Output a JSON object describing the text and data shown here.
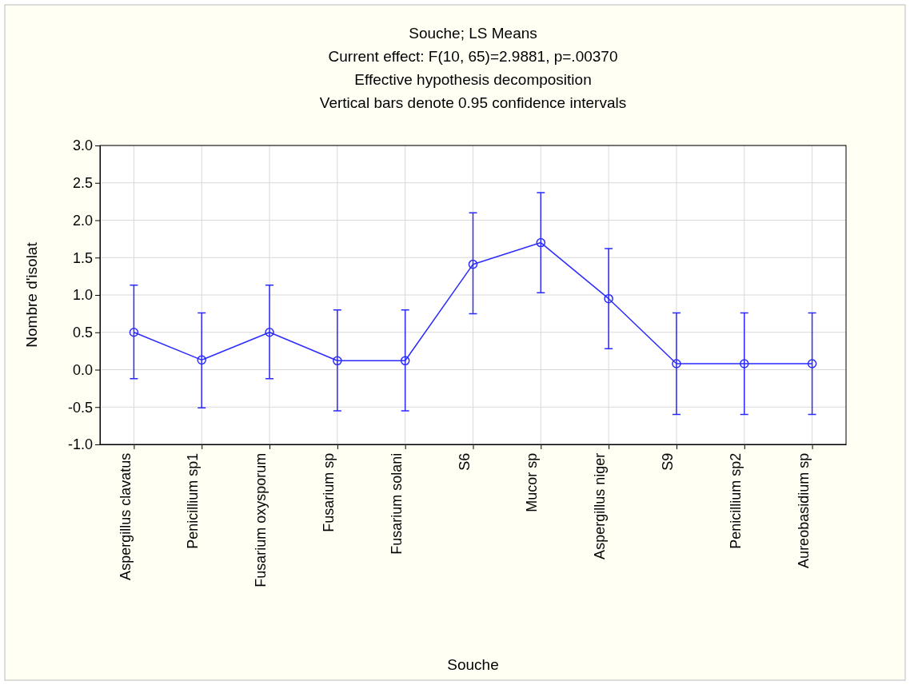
{
  "chart_data": {
    "type": "line",
    "title": "Souche; LS Means",
    "subtitle": "Current effect: F(10, 65)=2.9881, p=.00370\nEffective hypothesis decomposition\nVertical bars denote 0.95 confidence intervals",
    "xlabel": "Souche",
    "ylabel": "Nombre d'isolat",
    "categories": [
      "Aspergillus clavatus",
      "Penicillium sp1",
      "Fusarium oxysporum",
      "Fusarium sp",
      "Fusarium solani",
      "S6",
      "Mucor sp",
      "Aspergillus niger",
      "S9",
      "Penicillium sp2",
      "Aureobasidium sp"
    ],
    "series": [
      {
        "color": "#2b2bff",
        "values": [
          0.5,
          0.13,
          0.5,
          0.12,
          0.12,
          1.41,
          1.7,
          0.95,
          0.08,
          0.08,
          0.08
        ],
        "errors": [
          [
            -0.12,
            1.13
          ],
          [
            -0.51,
            0.76
          ],
          [
            -0.12,
            1.13
          ],
          [
            -0.55,
            0.8
          ],
          [
            -0.55,
            0.8
          ],
          [
            0.75,
            2.1
          ],
          [
            1.03,
            2.37
          ],
          [
            0.28,
            1.62
          ],
          [
            -0.6,
            0.76
          ],
          [
            -0.6,
            0.76
          ],
          [
            -0.6,
            0.76
          ]
        ]
      }
    ],
    "ylim": [
      -1,
      3
    ],
    "yticks": [
      {
        "value": -1,
        "label": "-1.0"
      },
      {
        "value": -0.5,
        "label": "-0.5"
      },
      {
        "value": 0,
        "label": "0.0"
      },
      {
        "value": 0.5,
        "label": "0.5"
      },
      {
        "value": 1,
        "label": "1.0"
      },
      {
        "value": 1.5,
        "label": "1.5"
      },
      {
        "value": 2,
        "label": "2.0"
      },
      {
        "value": 2.5,
        "label": "2.5"
      },
      {
        "value": 3,
        "label": "3.0"
      }
    ],
    "grid": true,
    "marker": "circle",
    "line_style": "solid"
  }
}
